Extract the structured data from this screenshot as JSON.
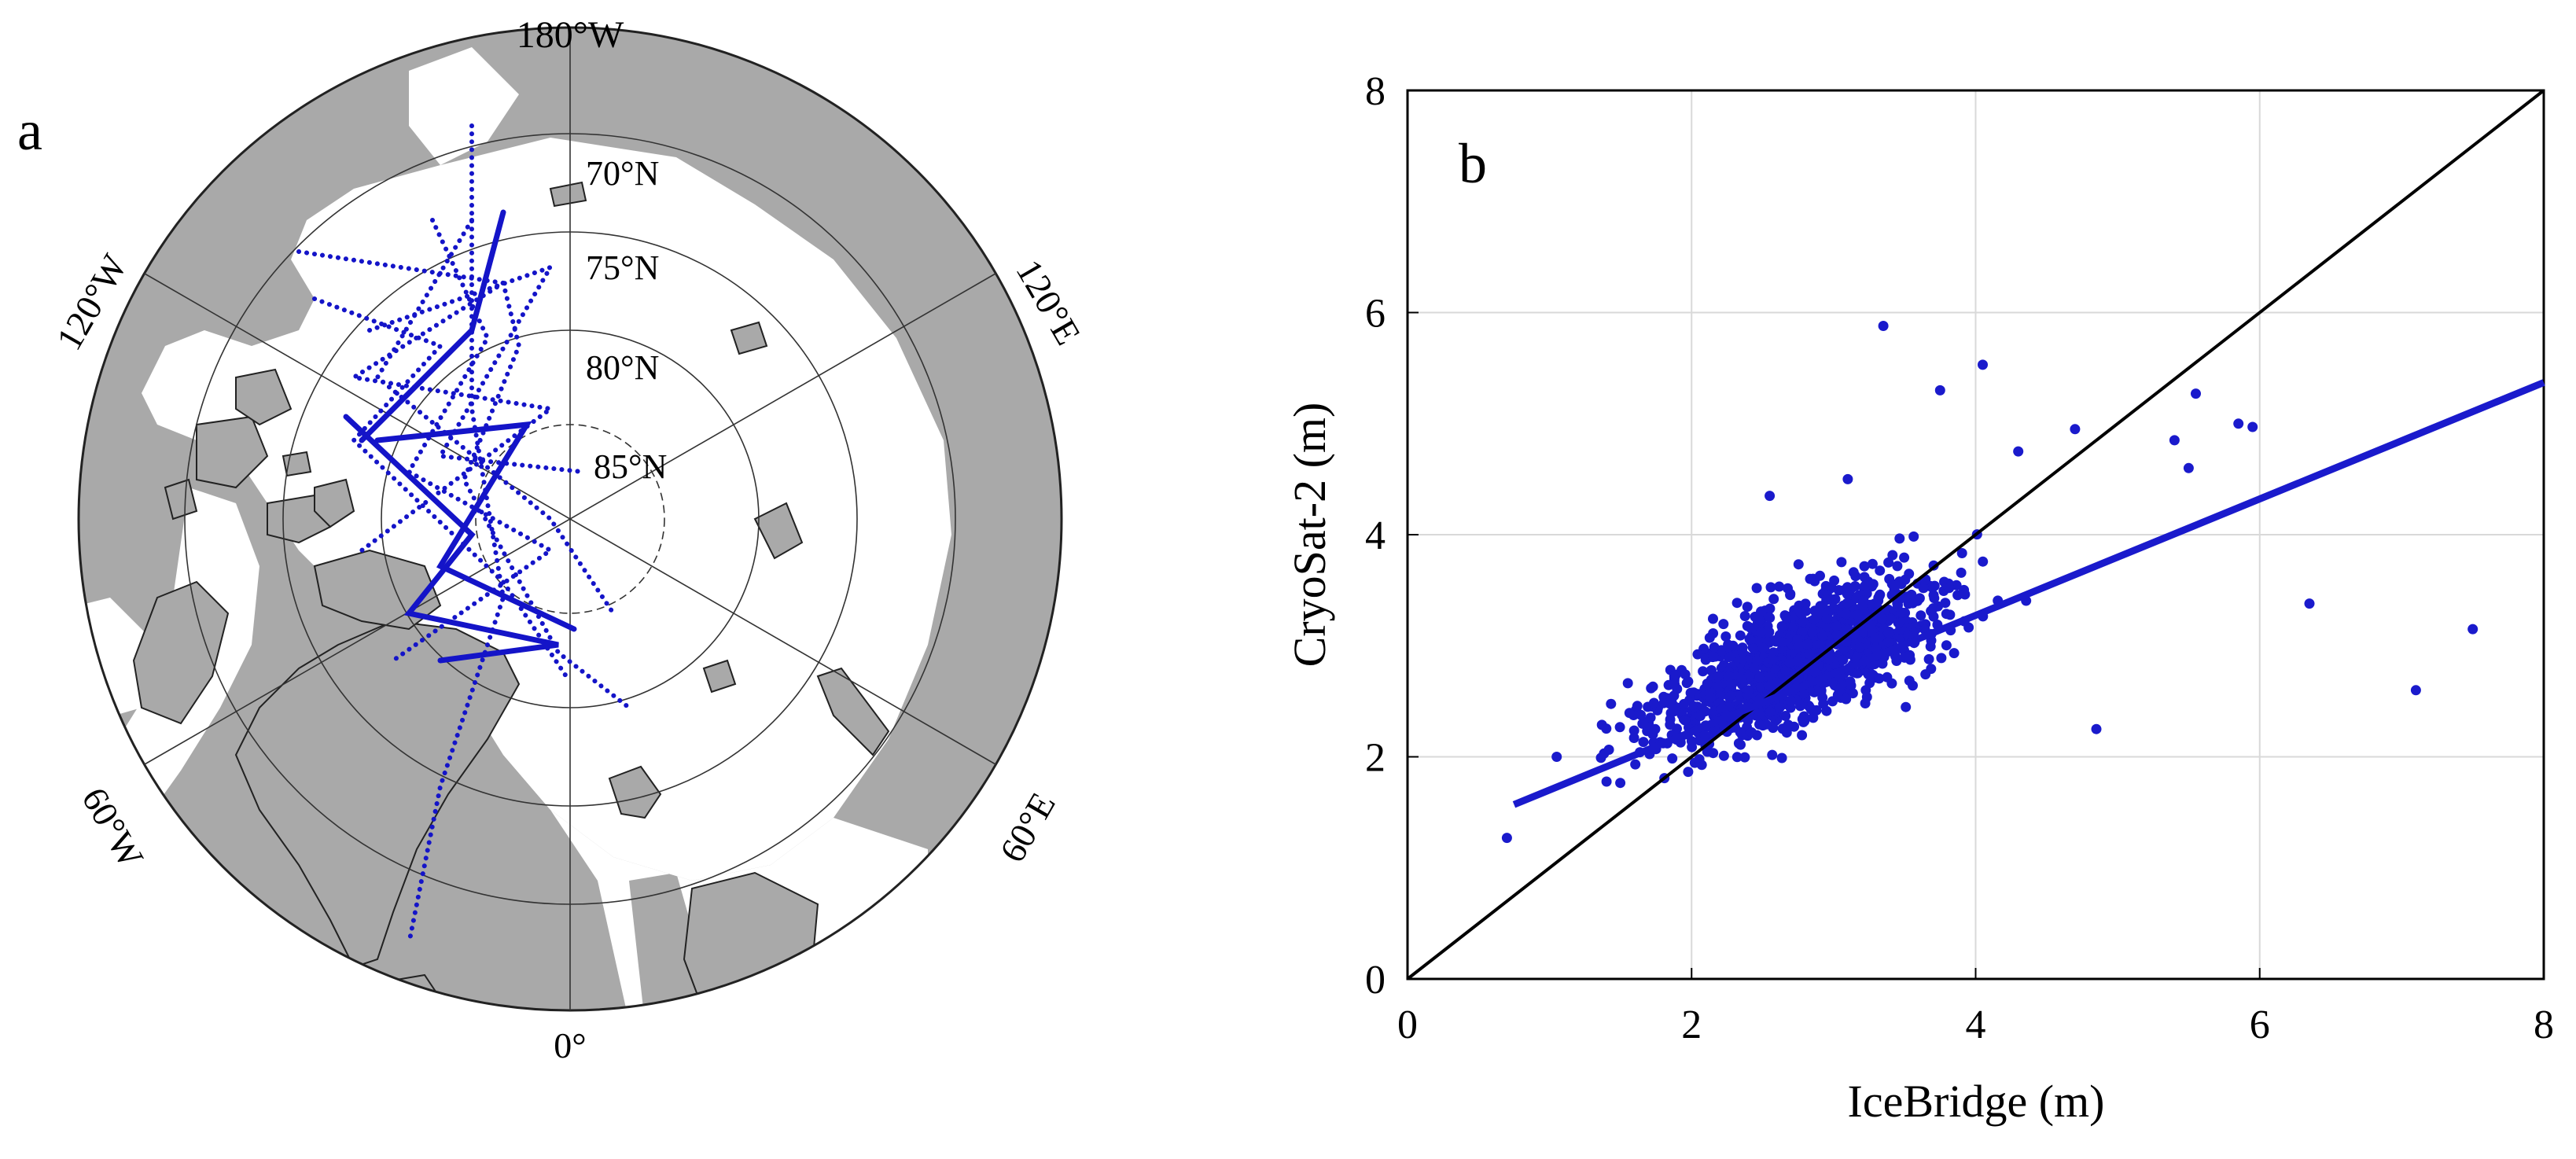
{
  "panel_a": {
    "label": "a",
    "lon_labels": [
      "180°W",
      "120°E",
      "60°E",
      "0°",
      "60°W",
      "120°W"
    ],
    "lat_labels": [
      "70°N",
      "75°N",
      "80°N",
      "85°N"
    ],
    "colors": {
      "land": "#a9a9a9",
      "ocean": "#ffffff",
      "track": "#1414c8",
      "grid": "#333333"
    }
  },
  "panel_b": {
    "label": "b",
    "colors": {
      "points": "#1a1acc",
      "fit": "#1a1acc",
      "identity": "#000000",
      "grid": "#d9d9d9"
    }
  },
  "chart_data": {
    "type": "scatter",
    "title": "",
    "xlabel": "IceBridge (m)",
    "ylabel": "CryoSat-2 (m)",
    "xlim": [
      0,
      8
    ],
    "ylim": [
      0,
      8
    ],
    "xticks": [
      "0",
      "2",
      "4",
      "6",
      "8"
    ],
    "yticks": [
      "0",
      "2",
      "4",
      "6",
      "8"
    ],
    "grid": true,
    "identity_line": {
      "x": [
        0,
        8
      ],
      "y": [
        0,
        8
      ]
    },
    "fit_line": {
      "x": [
        0.75,
        8.0
      ],
      "y": [
        1.57,
        5.37
      ]
    },
    "outliers": [
      [
        3.35,
        5.88
      ],
      [
        4.05,
        5.53
      ],
      [
        3.75,
        5.3
      ],
      [
        5.55,
        5.27
      ],
      [
        5.95,
        4.97
      ],
      [
        5.85,
        5.0
      ],
      [
        6.35,
        3.38
      ],
      [
        7.5,
        3.15
      ],
      [
        7.1,
        2.6
      ],
      [
        4.7,
        4.95
      ],
      [
        5.4,
        4.85
      ],
      [
        5.5,
        4.6
      ],
      [
        4.85,
        2.25
      ],
      [
        0.7,
        1.27
      ],
      [
        1.05,
        2.0
      ],
      [
        3.1,
        4.5
      ],
      [
        2.55,
        4.35
      ],
      [
        4.3,
        4.75
      ]
    ]
  }
}
